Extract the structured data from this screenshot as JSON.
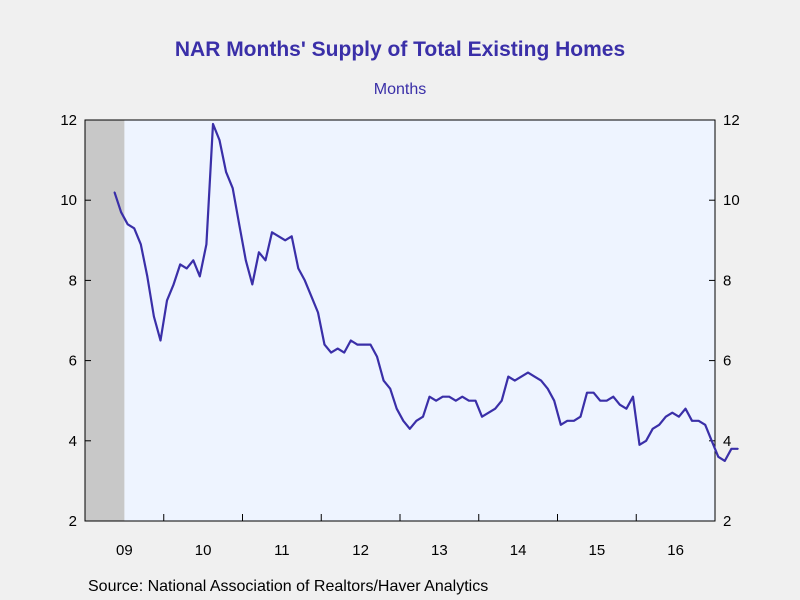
{
  "title": "NAR Months' Supply of Total Existing Homes",
  "subtitle": "Months",
  "source": "Source:  National Association of Realtors/Haver Analytics",
  "colors": {
    "line": "#3a2fa8",
    "plot_bg": "#eef4ff",
    "recession": "#c8c8c8",
    "title": "#3a2fa8"
  },
  "chart_data": {
    "type": "line",
    "title": "NAR Months' Supply of Total Existing Homes",
    "subtitle": "Months",
    "ylim": [
      2,
      12
    ],
    "y_ticks": [
      2,
      4,
      6,
      8,
      10,
      12
    ],
    "y_tick_labels": [
      "2",
      "4",
      "6",
      "8",
      "10",
      "12"
    ],
    "x_range": [
      "2009-01",
      "2016-12"
    ],
    "x_tick_labels": [
      "09",
      "10",
      "11",
      "12",
      "13",
      "14",
      "15",
      "16"
    ],
    "recession_shading": [
      "2009-01",
      "2009-06"
    ],
    "grid": false,
    "series": [
      {
        "frequency": "monthly",
        "start": "2009-05",
        "values": [
          10.2,
          9.7,
          9.4,
          9.3,
          8.9,
          8.1,
          7.1,
          6.5,
          7.5,
          7.9,
          8.4,
          8.3,
          8.5,
          8.1,
          8.9,
          11.9,
          11.5,
          10.7,
          10.3,
          9.4,
          8.5,
          7.9,
          8.7,
          8.5,
          9.2,
          9.1,
          9.0,
          9.1,
          8.3,
          8.0,
          7.6,
          7.2,
          6.4,
          6.2,
          6.3,
          6.2,
          6.5,
          6.4,
          6.4,
          6.4,
          6.1,
          5.5,
          5.3,
          4.8,
          4.5,
          4.3,
          4.5,
          4.6,
          5.1,
          5.0,
          5.1,
          5.1,
          5.0,
          5.1,
          5.0,
          5.0,
          4.6,
          4.7,
          4.8,
          5.0,
          5.6,
          5.5,
          5.6,
          5.7,
          5.6,
          5.5,
          5.3,
          5.0,
          4.4,
          4.5,
          4.5,
          4.6,
          5.2,
          5.2,
          5.0,
          5.0,
          5.1,
          4.9,
          4.8,
          5.1,
          3.9,
          4.0,
          4.3,
          4.4,
          4.6,
          4.7,
          4.6,
          4.8,
          4.5,
          4.5,
          4.4,
          4.0,
          3.6,
          3.5,
          3.8,
          3.8
        ]
      }
    ]
  }
}
